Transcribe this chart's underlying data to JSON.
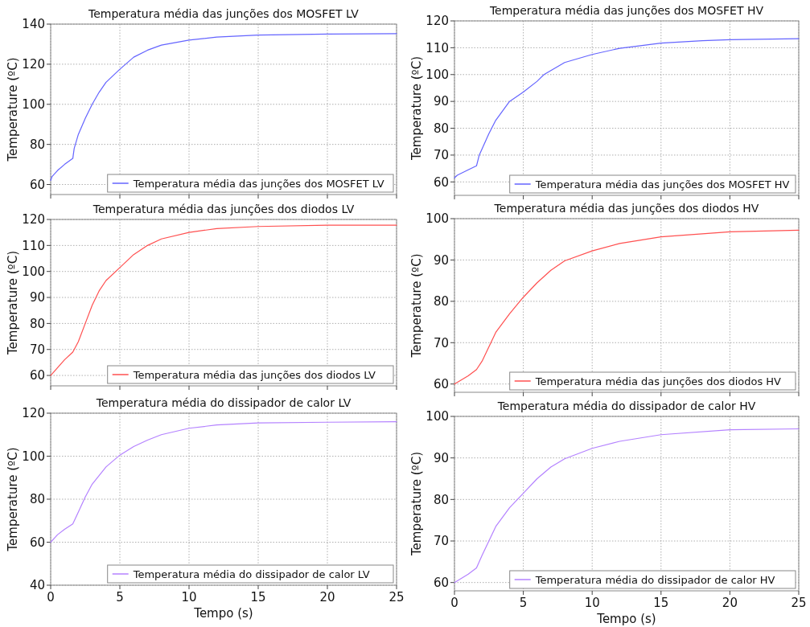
{
  "chart_data": [
    {
      "type": "line",
      "title": "Temperatura média das junções dos MOSFET LV",
      "ylabel": "Temperature (ºC)",
      "xlim": [
        0,
        25
      ],
      "xticks": [
        0,
        5,
        10,
        15,
        20,
        25
      ],
      "ylim": [
        55,
        140
      ],
      "yticks": [
        60,
        80,
        100,
        120,
        140
      ],
      "grid": true,
      "legend": "bottom right",
      "tick_labels": "y",
      "series": [
        {
          "name": "Temperatura média das junções dos MOSFET LV",
          "color": "#6464ff",
          "x": [
            0,
            0.1,
            0.5,
            1,
            1.6,
            1.7,
            2,
            2.5,
            3,
            3.5,
            4,
            5,
            6,
            7,
            8,
            10,
            12,
            15,
            20,
            25
          ],
          "values": [
            62,
            64,
            67,
            70,
            73,
            78,
            85,
            93,
            100,
            106,
            111,
            117.5,
            123.5,
            127,
            129.5,
            132,
            133.5,
            134.5,
            135,
            135.2
          ]
        }
      ]
    },
    {
      "type": "line",
      "title": "Temperatura média das junções dos MOSFET HV",
      "ylabel": "Temperature (ºC)",
      "xlim": [
        0,
        25
      ],
      "xticks": [
        0,
        5,
        10,
        15,
        20,
        25
      ],
      "ylim": [
        55,
        120
      ],
      "yticks": [
        60,
        70,
        80,
        90,
        100,
        110,
        120
      ],
      "grid": true,
      "legend": "bottom right",
      "tick_labels": "y",
      "series": [
        {
          "name": "Temperatura média das junções dos MOSFET HV",
          "color": "#6464ff",
          "x": [
            0,
            0.2,
            1,
            1.6,
            1.8,
            2.5,
            3,
            4,
            5,
            6,
            6.5,
            8,
            10,
            12,
            15,
            18,
            20,
            25
          ],
          "values": [
            61.5,
            62.5,
            64.5,
            66,
            70,
            78,
            83,
            90,
            93.5,
            97.5,
            100,
            104.5,
            107.5,
            109.8,
            111.7,
            112.6,
            113,
            113.4
          ]
        }
      ]
    },
    {
      "type": "line",
      "title": "Temperatura média das junções dos diodos LV",
      "ylabel": "Temperature (ºC)",
      "xlim": [
        0,
        25
      ],
      "xticks": [
        0,
        5,
        10,
        15,
        20,
        25
      ],
      "ylim": [
        56,
        120
      ],
      "yticks": [
        60,
        70,
        80,
        90,
        100,
        110,
        120
      ],
      "grid": true,
      "legend": "bottom right",
      "tick_labels": "y",
      "series": [
        {
          "name": "Temperatura média das junções dos diodos LV",
          "color": "#ff5050",
          "x": [
            0,
            0.5,
            1,
            1.6,
            2,
            2.5,
            3,
            3.5,
            4,
            5,
            6,
            7,
            8,
            10,
            12,
            15,
            20,
            25
          ],
          "values": [
            60,
            63,
            66,
            69,
            73,
            80,
            87,
            92.5,
            96.5,
            101.5,
            106.5,
            110,
            112.5,
            115,
            116.5,
            117.3,
            117.8,
            117.8
          ]
        }
      ]
    },
    {
      "type": "line",
      "title": "Temperatura média das junções dos diodos HV",
      "ylabel": "Temperature (ºC)",
      "xlim": [
        0,
        25
      ],
      "xticks": [
        0,
        5,
        10,
        15,
        20,
        25
      ],
      "ylim": [
        58,
        100
      ],
      "yticks": [
        60,
        70,
        80,
        90,
        100
      ],
      "grid": true,
      "legend": "bottom right",
      "tick_labels": "y",
      "series": [
        {
          "name": "Temperatura média das junções dos diodos HV",
          "color": "#ff5050",
          "x": [
            0,
            1,
            1.6,
            2,
            2.5,
            3,
            4,
            5,
            6,
            7,
            8,
            10,
            12,
            15,
            20,
            25
          ],
          "values": [
            60,
            62,
            63.5,
            65.5,
            69,
            72.5,
            77,
            81,
            84.5,
            87.5,
            89.8,
            92.2,
            94,
            95.6,
            96.8,
            97.2
          ]
        }
      ]
    },
    {
      "type": "line",
      "title": "Temperatura média do dissipador de calor LV",
      "xlabel": "Tempo (s)",
      "ylabel": "Temperature (ºC)",
      "xlim": [
        0,
        25
      ],
      "xticks": [
        0,
        5,
        10,
        15,
        20,
        25
      ],
      "ylim": [
        40,
        120
      ],
      "yticks": [
        40,
        60,
        80,
        100,
        120
      ],
      "grid": true,
      "legend": "bottom right",
      "series": [
        {
          "name": "Temperatura média do dissipador de calor LV",
          "color": "#b482ff",
          "x": [
            0,
            0.5,
            1,
            1.6,
            2,
            2.5,
            3,
            4,
            5,
            6,
            7,
            8,
            10,
            12,
            15,
            20,
            25
          ],
          "values": [
            60,
            63.5,
            66,
            68.5,
            74,
            81,
            87,
            95,
            100.5,
            104.5,
            107.5,
            110,
            113,
            114.5,
            115.5,
            115.8,
            116
          ]
        }
      ]
    },
    {
      "type": "line",
      "title": "Temperatura média do dissipador de calor HV",
      "xlabel": "Tempo (s)",
      "ylabel": "Temperature (ºC)",
      "xlim": [
        0,
        25
      ],
      "xticks": [
        0,
        5,
        10,
        15,
        20,
        25
      ],
      "ylim": [
        58,
        100
      ],
      "yticks": [
        60,
        70,
        80,
        90,
        100
      ],
      "grid": true,
      "legend": "bottom right",
      "series": [
        {
          "name": "Temperatura média do dissipador de calor HV",
          "color": "#b482ff",
          "x": [
            0,
            1,
            1.6,
            2,
            2.5,
            3,
            4,
            5,
            6,
            7,
            8,
            10,
            12,
            15,
            20,
            25
          ],
          "values": [
            60,
            62,
            63.5,
            66.5,
            70,
            73.5,
            78,
            81.5,
            85,
            87.8,
            89.8,
            92.3,
            94,
            95.6,
            96.8,
            97
          ]
        }
      ]
    }
  ]
}
